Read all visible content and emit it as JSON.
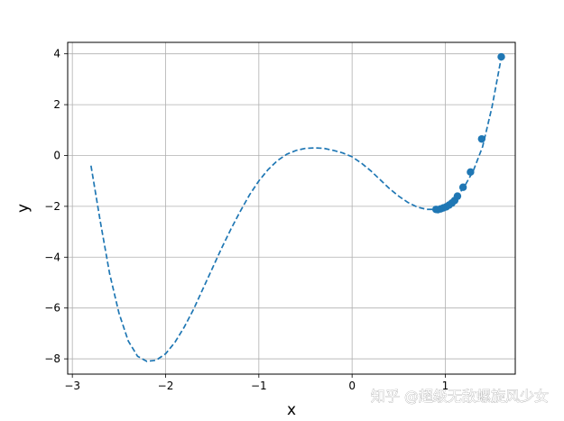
{
  "chart_data": {
    "type": "line",
    "xlabel": "x",
    "ylabel": "y",
    "xlim": [
      -3.05,
      1.75
    ],
    "ylim": [
      -8.6,
      4.45
    ],
    "xticks": [
      -3,
      -2,
      -1,
      0,
      1
    ],
    "yticks": [
      -8,
      -6,
      -4,
      -2,
      0,
      2,
      4
    ],
    "xtick_labels": [
      "−3",
      "−2",
      "−1",
      "0",
      "1"
    ],
    "ytick_labels": [
      "−8",
      "−6",
      "−4",
      "−2",
      "0",
      "2",
      "4"
    ],
    "grid": true,
    "series": [
      {
        "style": "dashed-line",
        "color": "#1f77b4",
        "x": [
          -2.8,
          -2.7,
          -2.6,
          -2.5,
          -2.4,
          -2.3,
          -2.2,
          -2.1,
          -2.0,
          -1.9,
          -1.8,
          -1.7,
          -1.6,
          -1.5,
          -1.4,
          -1.3,
          -1.2,
          -1.1,
          -1.0,
          -0.9,
          -0.8,
          -0.7,
          -0.6,
          -0.5,
          -0.4,
          -0.3,
          -0.2,
          -0.1,
          0.0,
          0.1,
          0.2,
          0.3,
          0.4,
          0.5,
          0.6,
          0.7,
          0.8,
          0.9,
          1.0,
          1.1,
          1.2,
          1.3,
          1.4,
          1.5,
          1.6
        ],
        "y": [
          -0.4,
          -2.6,
          -4.65,
          -6.2,
          -7.3,
          -7.9,
          -8.1,
          -8.05,
          -7.8,
          -7.35,
          -6.75,
          -6.05,
          -5.25,
          -4.45,
          -3.65,
          -2.9,
          -2.2,
          -1.55,
          -1.0,
          -0.55,
          -0.2,
          0.05,
          0.2,
          0.28,
          0.3,
          0.28,
          0.2,
          0.1,
          -0.05,
          -0.3,
          -0.6,
          -0.95,
          -1.3,
          -1.6,
          -1.85,
          -2.03,
          -2.12,
          -2.12,
          -2.0,
          -1.72,
          -1.25,
          -0.6,
          0.35,
          1.9,
          3.85
        ]
      },
      {
        "style": "points",
        "color": "#1f77b4",
        "x": [
          0.9,
          0.92,
          0.95,
          0.98,
          1.01,
          1.04,
          1.07,
          1.1,
          1.13,
          1.19,
          1.27,
          1.39,
          1.6
        ],
        "y": [
          -2.12,
          -2.13,
          -2.1,
          -2.06,
          -2.02,
          -1.95,
          -1.87,
          -1.77,
          -1.6,
          -1.25,
          -0.65,
          0.65,
          3.88
        ]
      }
    ]
  },
  "watermark": "知乎 @超级无敌螺旋风少女"
}
